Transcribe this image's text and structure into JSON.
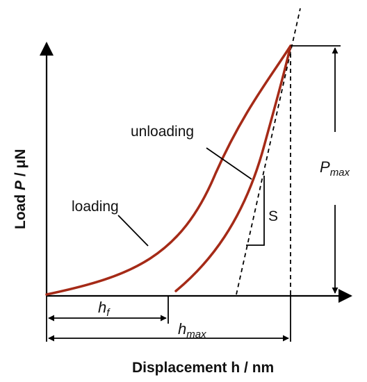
{
  "axes": {
    "x_label": "Displacement h / nm",
    "y_label_prefix": "Load ",
    "y_label_symbol": "P",
    "y_label_suffix": " / μN"
  },
  "curves": {
    "loading_label": "loading",
    "unloading_label": "unloading",
    "curve_color": "#a52a17"
  },
  "annotations": {
    "stiffness_label": "S",
    "pmax_main": "P",
    "pmax_sub": "max",
    "hf_main": "h",
    "hf_sub": "f",
    "hmax_main": "h",
    "hmax_sub": "max"
  }
}
